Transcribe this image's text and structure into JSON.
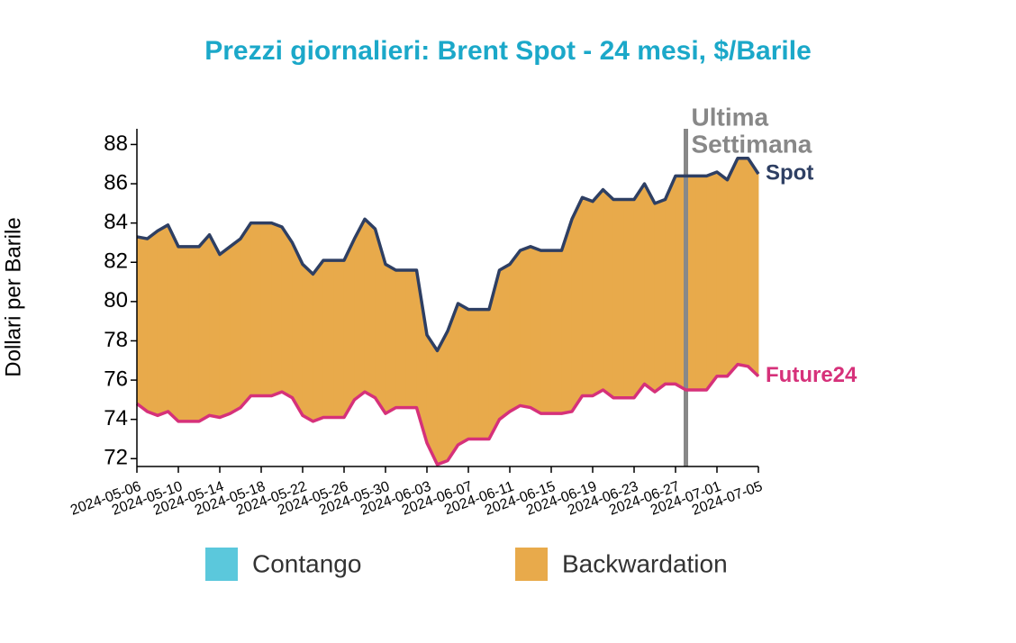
{
  "chart_data": {
    "type": "line",
    "title": "Prezzi giornalieri: Brent Spot - 24 mesi, $/Barile",
    "y_label": "Dollari per Barile",
    "x": [
      "2024-05-06",
      "2024-05-07",
      "2024-05-08",
      "2024-05-09",
      "2024-05-10",
      "2024-05-11",
      "2024-05-12",
      "2024-05-13",
      "2024-05-14",
      "2024-05-15",
      "2024-05-16",
      "2024-05-17",
      "2024-05-18",
      "2024-05-19",
      "2024-05-20",
      "2024-05-21",
      "2024-05-22",
      "2024-05-23",
      "2024-05-24",
      "2024-05-25",
      "2024-05-26",
      "2024-05-27",
      "2024-05-28",
      "2024-05-29",
      "2024-05-30",
      "2024-05-31",
      "2024-06-01",
      "2024-06-02",
      "2024-06-03",
      "2024-06-04",
      "2024-06-05",
      "2024-06-06",
      "2024-06-07",
      "2024-06-08",
      "2024-06-09",
      "2024-06-10",
      "2024-06-11",
      "2024-06-12",
      "2024-06-13",
      "2024-06-14",
      "2024-06-15",
      "2024-06-16",
      "2024-06-17",
      "2024-06-18",
      "2024-06-19",
      "2024-06-20",
      "2024-06-21",
      "2024-06-22",
      "2024-06-23",
      "2024-06-24",
      "2024-06-25",
      "2024-06-26",
      "2024-06-27",
      "2024-06-28",
      "2024-06-29",
      "2024-06-30",
      "2024-07-01",
      "2024-07-02",
      "2024-07-03",
      "2024-07-04",
      "2024-07-05"
    ],
    "series": [
      {
        "name": "Spot",
        "color": "#2e3f63",
        "values": [
          83.3,
          83.2,
          83.6,
          83.9,
          82.8,
          82.8,
          82.8,
          83.4,
          82.4,
          82.8,
          83.2,
          84.0,
          84.0,
          84.0,
          83.8,
          83.0,
          81.9,
          81.4,
          82.1,
          82.1,
          82.1,
          83.2,
          84.2,
          83.7,
          81.9,
          81.6,
          81.6,
          81.6,
          78.3,
          77.5,
          78.5,
          79.9,
          79.6,
          79.6,
          79.6,
          81.6,
          81.9,
          82.6,
          82.8,
          82.6,
          82.6,
          82.6,
          84.2,
          85.3,
          85.1,
          85.7,
          85.2,
          85.2,
          85.2,
          86.0,
          85.0,
          85.2,
          86.4,
          86.4,
          86.4,
          86.4,
          86.6,
          86.2,
          87.3,
          87.3,
          86.5
        ]
      },
      {
        "name": "Future24",
        "color": "#d6317a",
        "values": [
          74.8,
          74.4,
          74.2,
          74.4,
          73.9,
          73.9,
          73.9,
          74.2,
          74.1,
          74.3,
          74.6,
          75.2,
          75.2,
          75.2,
          75.4,
          75.1,
          74.2,
          73.9,
          74.1,
          74.1,
          74.1,
          75.0,
          75.4,
          75.1,
          74.3,
          74.6,
          74.6,
          74.6,
          72.8,
          71.7,
          71.9,
          72.7,
          73.0,
          73.0,
          73.0,
          74.0,
          74.4,
          74.7,
          74.6,
          74.3,
          74.3,
          74.3,
          74.4,
          75.2,
          75.2,
          75.5,
          75.1,
          75.1,
          75.1,
          75.8,
          75.4,
          75.8,
          75.8,
          75.5,
          75.5,
          75.5,
          76.2,
          76.2,
          76.8,
          76.7,
          76.2
        ]
      }
    ],
    "fill_between": [
      {
        "name": "Contango",
        "color": "#5bc8dc"
      },
      {
        "name": "Backwardation",
        "color": "#e8aa4b"
      }
    ],
    "xlim": [
      "2024-05-06",
      "2024-07-05"
    ],
    "xticks": [
      "2024-05-06",
      "2024-05-10",
      "2024-05-14",
      "2024-05-18",
      "2024-05-22",
      "2024-05-26",
      "2024-05-30",
      "2024-06-03",
      "2024-06-07",
      "2024-06-11",
      "2024-06-15",
      "2024-06-19",
      "2024-06-23",
      "2024-06-27",
      "2024-07-01",
      "2024-07-05"
    ],
    "ylim": [
      71.6,
      88.8
    ],
    "yticks": [
      72,
      74,
      76,
      78,
      80,
      82,
      84,
      86,
      88
    ],
    "annotation": {
      "x": "2024-06-28",
      "lines": [
        "Ultima",
        "Settimana"
      ],
      "color": "#888888"
    }
  }
}
